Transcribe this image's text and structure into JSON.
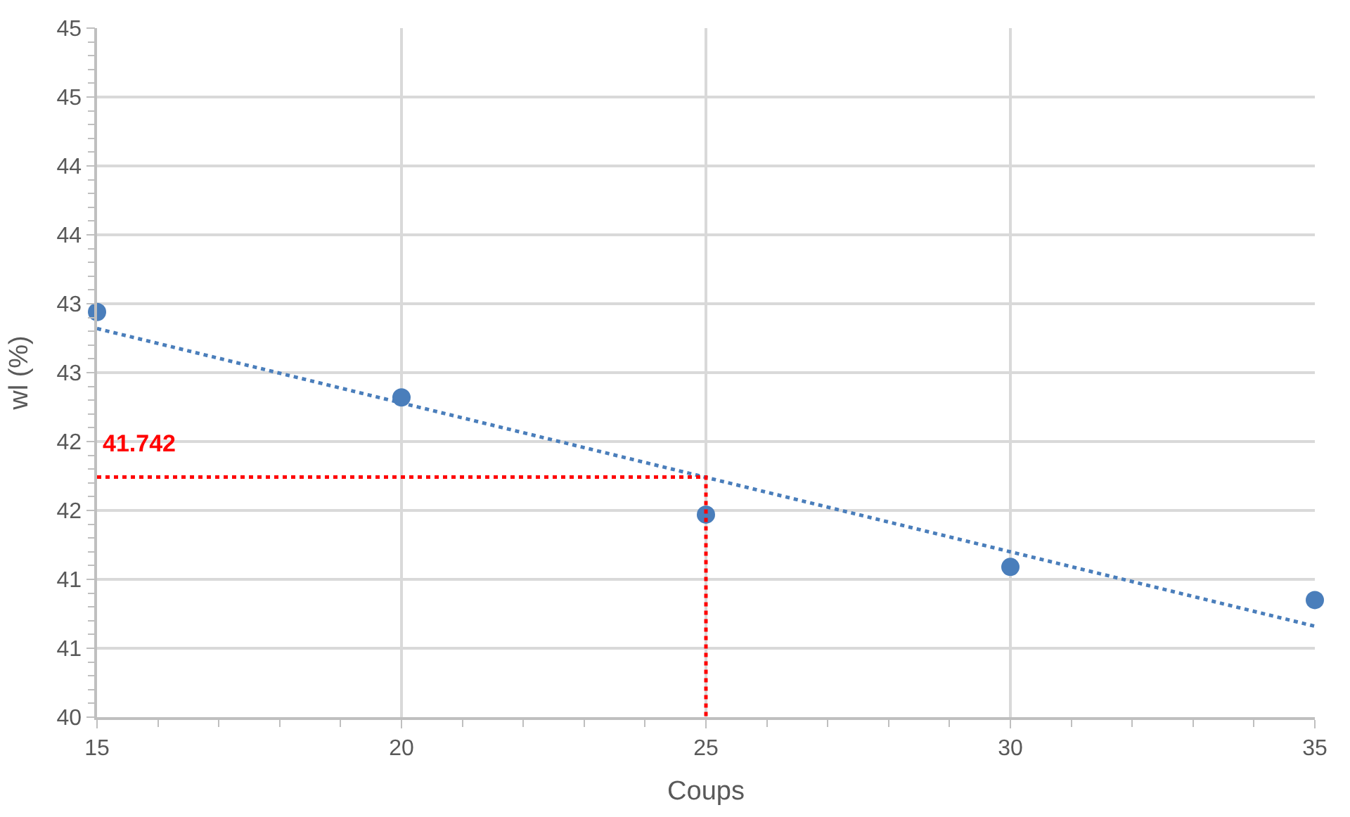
{
  "chart_data": {
    "type": "scatter",
    "xlabel": "Coups",
    "ylabel": "wl (%)",
    "x": [
      15,
      20,
      25,
      30,
      35
    ],
    "series": [
      {
        "color": "#4a7ebb",
        "marker": "circle",
        "values": [
          42.94,
          42.32,
          41.47,
          41.09,
          40.85
        ]
      },
      {
        "type": "line",
        "color": "#4a7ebb",
        "line_style": "dotted",
        "marker": "none",
        "x": [
          15,
          35
        ],
        "values": [
          42.82,
          40.66
        ]
      },
      {
        "type": "line",
        "color": "#ff0000",
        "line_style": "dotted",
        "marker": "none",
        "x": [
          15,
          25,
          25
        ],
        "values": [
          41.742,
          41.742,
          40
        ]
      }
    ],
    "annotations": [
      {
        "text": "41.742",
        "x": 15,
        "y": 41.742
      }
    ],
    "xlim": [
      15,
      35
    ],
    "xticks": [
      15,
      20,
      25,
      30,
      35
    ],
    "ylim": [
      40,
      45
    ],
    "yticks": [
      40,
      {
        "value": 40.5,
        "label": "41"
      },
      41,
      {
        "value": 41.5,
        "label": "42"
      },
      42,
      {
        "value": 42.5,
        "label": "43"
      },
      43,
      {
        "value": 43.5,
        "label": "44"
      },
      44,
      {
        "value": 44.5,
        "label": "45"
      },
      45
    ],
    "grid": true
  }
}
